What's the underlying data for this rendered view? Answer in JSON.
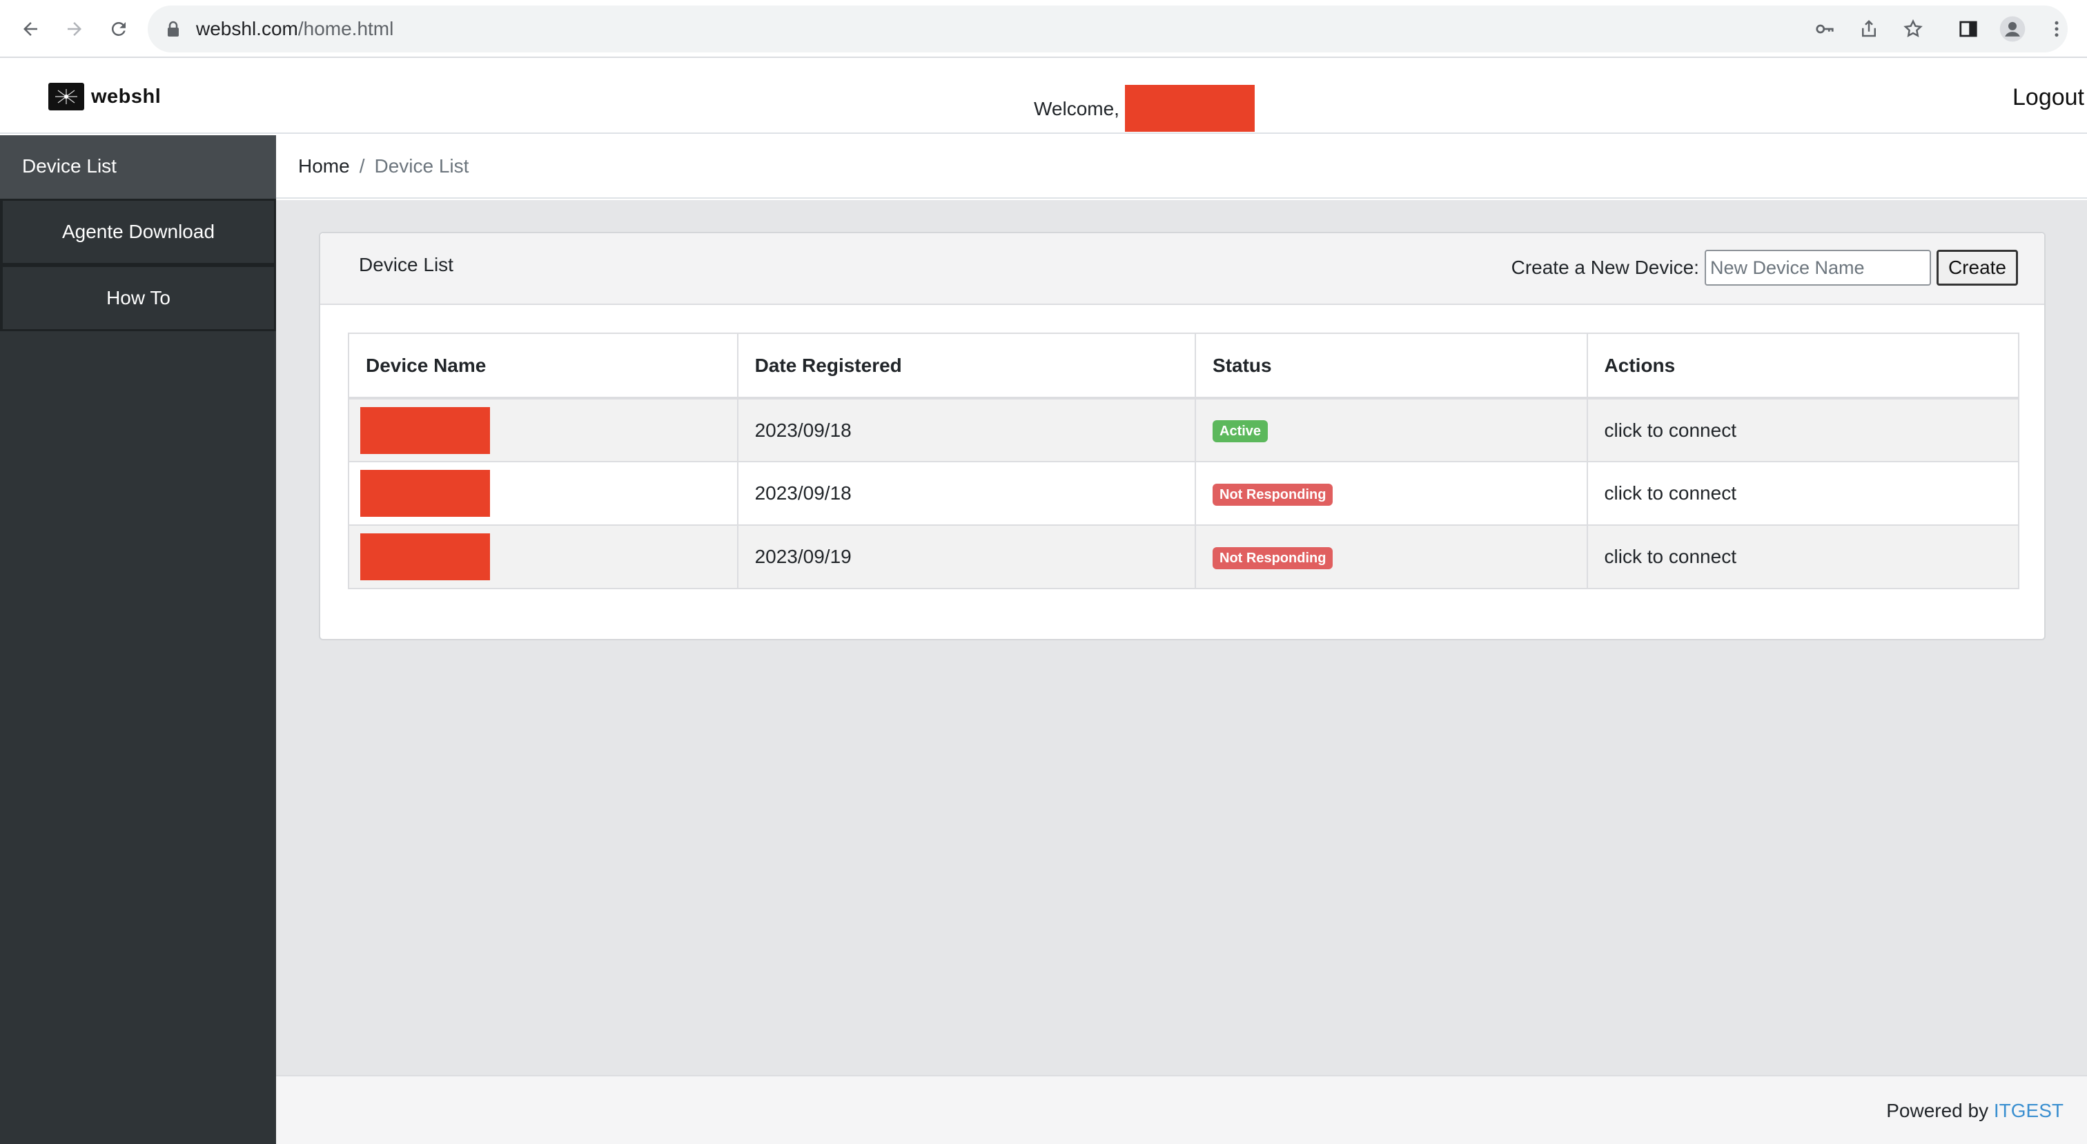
{
  "browser": {
    "url_domain": "webshl.com",
    "url_path": "/home.html"
  },
  "header": {
    "brand": "webshl",
    "welcome_text": "Welcome,",
    "logout_label": "Logout"
  },
  "sidebar": {
    "title": "Device List",
    "items": [
      {
        "label": "Agente Download"
      },
      {
        "label": "How To"
      }
    ]
  },
  "breadcrumb": {
    "home": "Home",
    "separator": "/",
    "current": "Device List"
  },
  "card": {
    "title": "Device List",
    "create_label": "Create a New Device:",
    "create_placeholder": "New Device Name",
    "create_button": "Create"
  },
  "table": {
    "columns": [
      "Device Name",
      "Date Registered",
      "Status",
      "Actions"
    ],
    "rows": [
      {
        "date": "2023/09/18",
        "status": "Active",
        "action": "click to connect"
      },
      {
        "date": "2023/09/18",
        "status": "Not Responding",
        "action": "click to connect"
      },
      {
        "date": "2023/09/19",
        "status": "Not Responding",
        "action": "click to connect"
      }
    ]
  },
  "footer": {
    "powered_by": "Powered by",
    "company": "ITGEST"
  },
  "colors": {
    "sidebar_bg": "#2f3437",
    "redaction": "#e94128",
    "status_active": "#5cb85c",
    "status_not_responding": "#e05f5f",
    "footer_link": "#3a8fd0"
  }
}
